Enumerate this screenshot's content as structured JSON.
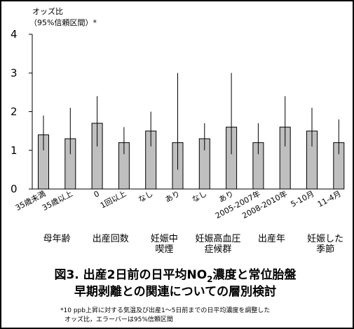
{
  "chart_data": {
    "type": "bar",
    "ylabel_line1": "オッズ比",
    "ylabel_line2": "（95%信頼区間）*",
    "ylim": [
      0,
      4
    ],
    "yticks": [
      0,
      1,
      2,
      3,
      4
    ],
    "grid": false,
    "categories": [
      "35歳未満",
      "35歳以上",
      "0",
      "1回以上",
      "なし",
      "あり",
      "なし",
      "あり",
      "2005-2007年",
      "2008-2010年",
      "5-10月",
      "11-4月"
    ],
    "values": [
      1.4,
      1.3,
      1.7,
      1.2,
      1.5,
      1.2,
      1.3,
      1.6,
      1.2,
      1.6,
      1.5,
      1.2
    ],
    "ci_low": [
      1.0,
      0.9,
      1.1,
      0.9,
      1.1,
      0.5,
      1.0,
      0.9,
      0.9,
      1.1,
      1.1,
      0.9
    ],
    "ci_high": [
      1.9,
      2.1,
      2.4,
      1.6,
      2.0,
      3.0,
      1.7,
      3.0,
      1.7,
      2.4,
      2.1,
      1.8
    ],
    "groups": [
      {
        "line1": "母年齢",
        "line2": "",
        "span": [
          0,
          1
        ]
      },
      {
        "line1": "出産回数",
        "line2": "",
        "span": [
          2,
          3
        ]
      },
      {
        "line1": "妊娠中",
        "line2": "喫煙",
        "span": [
          4,
          5
        ]
      },
      {
        "line1": "妊娠高血圧",
        "line2": "症候群",
        "span": [
          6,
          7
        ]
      },
      {
        "line1": "出産年",
        "line2": "",
        "span": [
          8,
          9
        ]
      },
      {
        "line1": "妊娠した",
        "line2": "季節",
        "span": [
          10,
          11
        ]
      }
    ],
    "bar_color": "#bfbfbf",
    "title_line1_a": "図3.  出産2日前の日平均NO",
    "title_line1_sub": "2",
    "title_line1_b": "濃度と常位胎盤",
    "title_line2": "早期剥離との関連についての層別検討",
    "footnote_line1": "*10 ppb上昇に対する気温及び出産1〜5日前までの日平均濃度を調整した",
    "footnote_line2": "オッズ比，エラーバーは95%信頼区間"
  }
}
